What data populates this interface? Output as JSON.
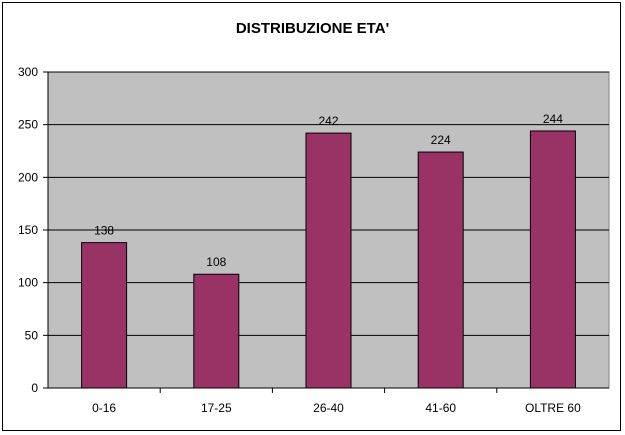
{
  "chart_data": {
    "type": "bar",
    "title": "DISTRIBUZIONE ETA'",
    "categories": [
      "0-16",
      "17-25",
      "26-40",
      "41-60",
      "OLTRE 60"
    ],
    "values": [
      138,
      108,
      242,
      224,
      244
    ],
    "data_labels": [
      "138",
      "108",
      "242",
      "224",
      "244"
    ],
    "xlabel": "",
    "ylabel": "",
    "ylim": [
      0,
      300
    ],
    "yticks": [
      0,
      50,
      100,
      150,
      200,
      250,
      300
    ],
    "grid": true,
    "legend": "none",
    "colors": {
      "bar": "#993366",
      "plot_background": "#c0c0c0",
      "gridline": "#000000"
    }
  }
}
